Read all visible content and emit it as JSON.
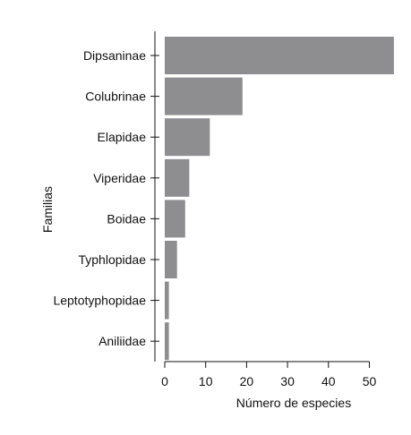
{
  "chart_data": {
    "type": "bar",
    "orientation": "horizontal",
    "categories": [
      "Dipsaninae",
      "Colubrinae",
      "Elapidae",
      "Viperidae",
      "Boidae",
      "Typhlopidae",
      "Leptotyphopidae",
      "Aniliidae"
    ],
    "values": [
      56,
      19,
      11,
      6,
      5,
      3,
      1,
      1
    ],
    "xlabel": "Número de especies",
    "ylabel": "Familias",
    "xlim": [
      0,
      56
    ],
    "xticks": [
      0,
      10,
      20,
      30,
      40,
      50
    ],
    "grid": false,
    "bar_color": "#8e8e90",
    "axis_color": "#111111"
  }
}
